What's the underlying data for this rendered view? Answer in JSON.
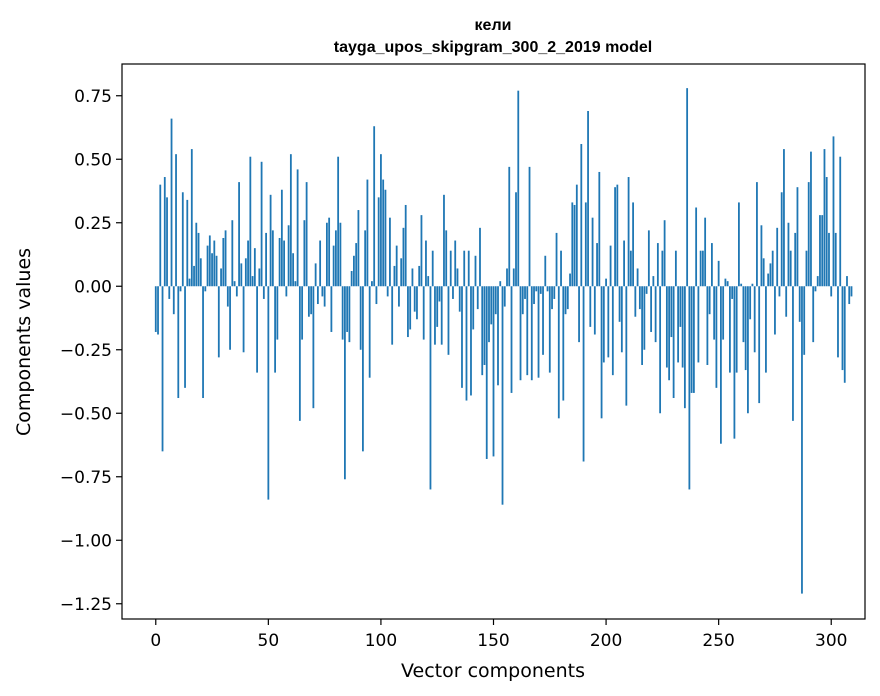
{
  "chart_data": {
    "type": "bar",
    "title": "кели",
    "subtitle": "tayga_upos_skipgram_300_2_2019 model",
    "xlabel": "Vector components",
    "ylabel": "Components values",
    "xlim": [
      -15,
      315
    ],
    "ylim": [
      -1.31,
      0.875
    ],
    "xticks": [
      0,
      50,
      100,
      150,
      200,
      250,
      300
    ],
    "xtick_labels": [
      "0",
      "50",
      "100",
      "150",
      "200",
      "250",
      "300"
    ],
    "yticks": [
      0.75,
      0.5,
      0.25,
      0.0,
      -0.25,
      -0.5,
      -0.75,
      -1.0,
      -1.25
    ],
    "ytick_labels": [
      "0.75",
      "0.50",
      "0.25",
      "0.00",
      "−0.25",
      "−0.50",
      "−0.75",
      "−1.00",
      "−1.25"
    ],
    "grid": false,
    "bar_color": "#1f77b4",
    "values": [
      -0.18,
      -0.19,
      0.4,
      -0.65,
      0.43,
      0.35,
      -0.05,
      0.66,
      -0.11,
      0.52,
      -0.44,
      -0.02,
      0.37,
      -0.4,
      0.34,
      0.03,
      0.54,
      0.08,
      0.25,
      0.21,
      0.11,
      -0.44,
      -0.02,
      0.16,
      0.2,
      0.13,
      0.18,
      0.12,
      -0.28,
      0.07,
      0.19,
      0.22,
      -0.08,
      -0.25,
      0.26,
      0.02,
      -0.04,
      0.41,
      0.09,
      -0.26,
      0.11,
      0.18,
      0.51,
      0.04,
      0.15,
      -0.34,
      0.07,
      0.49,
      -0.05,
      0.21,
      -0.84,
      0.36,
      0.22,
      -0.34,
      -0.21,
      0.19,
      0.38,
      0.18,
      -0.04,
      0.24,
      0.52,
      0.13,
      0.02,
      0.46,
      -0.53,
      -0.21,
      0.26,
      0.41,
      -0.12,
      -0.11,
      -0.48,
      0.09,
      -0.07,
      0.18,
      -0.04,
      -0.08,
      0.25,
      0.27,
      -0.18,
      0.16,
      0.22,
      0.51,
      0.25,
      -0.21,
      -0.76,
      -0.18,
      -0.22,
      0.06,
      0.12,
      0.17,
      0.3,
      -0.25,
      -0.65,
      0.22,
      0.42,
      -0.36,
      0.02,
      0.63,
      -0.07,
      0.35,
      0.52,
      0.42,
      0.38,
      -0.04,
      0.27,
      -0.23,
      0.08,
      0.16,
      -0.08,
      0.11,
      0.23,
      0.32,
      -0.2,
      -0.17,
      0.07,
      -0.1,
      -0.13,
      0.08,
      0.28,
      -0.21,
      0.18,
      0.04,
      -0.8,
      0.14,
      -0.23,
      -0.16,
      -0.06,
      -0.23,
      0.36,
      0.22,
      -0.27,
      0.14,
      -0.05,
      0.18,
      0.07,
      -0.1,
      -0.4,
      0.14,
      -0.45,
      0.14,
      -0.43,
      -0.17,
      0.12,
      -0.09,
      0.23,
      -0.35,
      -0.31,
      -0.68,
      -0.22,
      -0.15,
      -0.67,
      -0.11,
      -0.39,
      0.02,
      -0.86,
      -0.08,
      0.07,
      0.47,
      -0.42,
      0.07,
      0.37,
      0.77,
      -0.37,
      -0.11,
      -0.05,
      -0.35,
      0.47,
      -0.37,
      -0.07,
      -0.02,
      -0.36,
      -0.03,
      -0.27,
      0.12,
      -0.02,
      -0.34,
      -0.09,
      -0.05,
      0.21,
      -0.52,
      0.14,
      -0.45,
      -0.11,
      -0.09,
      0.05,
      0.33,
      0.32,
      0.4,
      -0.22,
      0.56,
      -0.69,
      0.33,
      0.69,
      -0.16,
      0.27,
      -0.19,
      0.17,
      0.45,
      -0.52,
      -0.3,
      0.03,
      -0.28,
      0.16,
      -0.35,
      0.39,
      0.4,
      -0.14,
      -0.26,
      0.18,
      -0.47,
      0.43,
      0.14,
      0.33,
      -0.12,
      0.07,
      -0.09,
      -0.31,
      -0.25,
      -0.03,
      0.22,
      -0.18,
      0.04,
      -0.22,
      0.17,
      -0.5,
      0.14,
      0.26,
      -0.32,
      -0.37,
      -0.2,
      -0.44,
      0.14,
      -0.3,
      -0.16,
      -0.32,
      -0.48,
      0.78,
      -0.8,
      -0.42,
      -0.42,
      0.31,
      -0.3,
      0.14,
      0.14,
      0.27,
      -0.31,
      -0.11,
      0.17,
      -0.21,
      -0.4,
      0.1,
      -0.62,
      -0.21,
      0.03,
      0.02,
      -0.34,
      -0.05,
      -0.6,
      -0.34,
      0.33,
      0.01,
      -0.22,
      -0.33,
      -0.5,
      -0.13,
      0.01,
      -0.26,
      0.41,
      -0.46,
      0.24,
      0.11,
      -0.34,
      0.05,
      0.09,
      0.14,
      -0.19,
      0.23,
      -0.04,
      0.37,
      0.54,
      -0.12,
      0.25,
      0.14,
      -0.53,
      0.21,
      0.39,
      -0.14,
      -1.21,
      -0.27,
      0.14,
      0.41,
      0.53,
      -0.22,
      -0.02,
      0.04,
      0.28,
      0.28,
      0.54,
      0.43,
      0.21,
      -0.04,
      0.59,
      0.21,
      -0.28,
      0.51,
      -0.33,
      -0.38,
      0.04,
      -0.07,
      -0.04
    ],
    "data_note": ""
  }
}
